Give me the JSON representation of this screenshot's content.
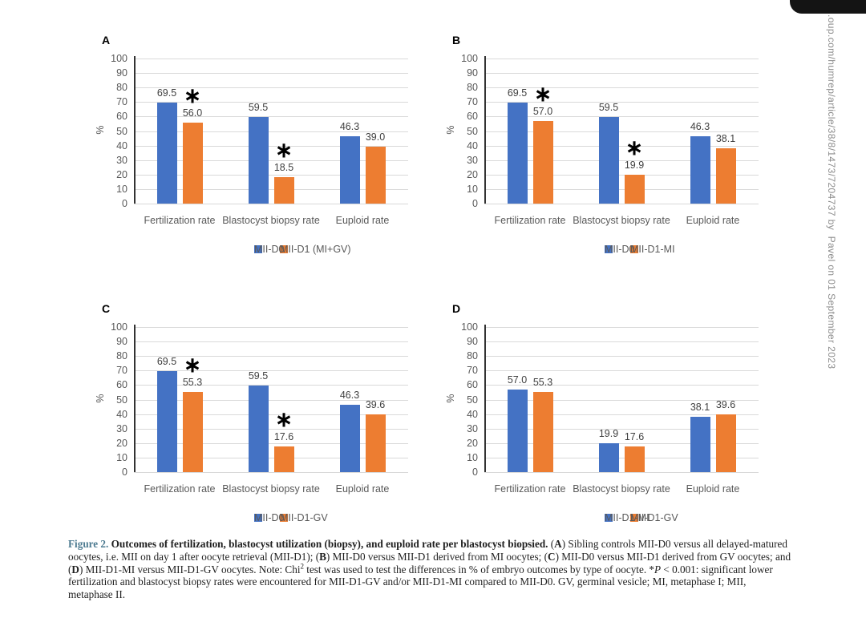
{
  "watermark": {
    "text": ".oup.com/humrep/article/38/8/1473/7204737 by  Pavel on 01 September 2023",
    "color": "#8c8c8c"
  },
  "corner_tab": {
    "color": "#141414"
  },
  "chart_style": {
    "grid_color": "#d9d9d9",
    "axis_color": "#333333",
    "tick_color": "#595959",
    "value_label_color": "#3f3f3f",
    "blue": "#4472C4",
    "orange": "#ED7D31",
    "sig_marker": "∗"
  },
  "chart_data": [
    {
      "type": "bar",
      "panel_label": "A",
      "ylabel": "%",
      "ylim": [
        0,
        100
      ],
      "yticks": [
        0,
        10,
        20,
        30,
        40,
        50,
        60,
        70,
        80,
        90,
        100
      ],
      "grid": true,
      "legend_position": "bottom",
      "categories": [
        "Fertilization rate",
        "Blastocyst biopsy rate",
        "Euploid rate"
      ],
      "series": [
        {
          "name": "MII-D0",
          "color": "#4472C4",
          "values": [
            69.5,
            59.5,
            46.3
          ],
          "labels": [
            "69.5",
            "59.5",
            "46.3"
          ],
          "sig": [
            false,
            false,
            false
          ]
        },
        {
          "name": "MII-D1 (MI+GV)",
          "color": "#ED7D31",
          "values": [
            56.0,
            18.5,
            39.0
          ],
          "labels": [
            "56.0",
            "18.5",
            "39.0"
          ],
          "sig": [
            true,
            true,
            false
          ]
        }
      ]
    },
    {
      "type": "bar",
      "panel_label": "B",
      "ylabel": "%",
      "ylim": [
        0,
        100
      ],
      "yticks": [
        0,
        10,
        20,
        30,
        40,
        50,
        60,
        70,
        80,
        90,
        100
      ],
      "grid": true,
      "legend_position": "bottom",
      "categories": [
        "Fertilization rate",
        "Blastocyst biopsy rate",
        "Euploid rate"
      ],
      "series": [
        {
          "name": "MII-D0",
          "color": "#4472C4",
          "values": [
            69.5,
            59.5,
            46.3
          ],
          "labels": [
            "69.5",
            "59.5",
            "46.3"
          ],
          "sig": [
            false,
            false,
            false
          ]
        },
        {
          "name": "MII-D1-MI",
          "color": "#ED7D31",
          "values": [
            57.0,
            19.9,
            38.1
          ],
          "labels": [
            "57.0",
            "19.9",
            "38.1"
          ],
          "sig": [
            true,
            true,
            false
          ]
        }
      ]
    },
    {
      "type": "bar",
      "panel_label": "C",
      "ylabel": "%",
      "ylim": [
        0,
        100
      ],
      "yticks": [
        0,
        10,
        20,
        30,
        40,
        50,
        60,
        70,
        80,
        90,
        100
      ],
      "grid": true,
      "legend_position": "bottom",
      "categories": [
        "Fertilization rate",
        "Blastocyst biopsy rate",
        "Euploid rate"
      ],
      "series": [
        {
          "name": "MII-D0",
          "color": "#4472C4",
          "values": [
            69.5,
            59.5,
            46.3
          ],
          "labels": [
            "69.5",
            "59.5",
            "46.3"
          ],
          "sig": [
            false,
            false,
            false
          ]
        },
        {
          "name": "MII-D1-GV",
          "color": "#ED7D31",
          "values": [
            55.3,
            17.6,
            39.6
          ],
          "labels": [
            "55.3",
            "17.6",
            "39.6"
          ],
          "sig": [
            true,
            true,
            false
          ]
        }
      ]
    },
    {
      "type": "bar",
      "panel_label": "D",
      "ylabel": "%",
      "ylim": [
        0,
        100
      ],
      "yticks": [
        0,
        10,
        20,
        30,
        40,
        50,
        60,
        70,
        80,
        90,
        100
      ],
      "grid": true,
      "legend_position": "bottom",
      "categories": [
        "Fertilization rate",
        "Blastocyst biopsy rate",
        "Euploid rate"
      ],
      "series": [
        {
          "name": "MII-D1-MI",
          "color": "#4472C4",
          "values": [
            57.0,
            19.9,
            38.1
          ],
          "labels": [
            "57.0",
            "19.9",
            "38.1"
          ],
          "sig": [
            false,
            false,
            false
          ]
        },
        {
          "name": "MII-D1-GV",
          "color": "#ED7D31",
          "values": [
            55.3,
            17.6,
            39.6
          ],
          "labels": [
            "55.3",
            "17.6",
            "39.6"
          ],
          "sig": [
            false,
            false,
            false
          ]
        }
      ]
    }
  ],
  "caption": {
    "segments": [
      {
        "t": "Figure 2. ",
        "s": "fig"
      },
      {
        "t": "Outcomes of fertilization, blastocyst utilization (biopsy), and euploid rate per blastocyst biopsied. ",
        "s": "b"
      },
      {
        "t": "(",
        "s": ""
      },
      {
        "t": "A",
        "s": "b"
      },
      {
        "t": ") Sibling controls MII-D0 versus all delayed-matured oocytes, i.e. MII on day 1 after oocyte retrieval (MII-D1); (",
        "s": ""
      },
      {
        "t": "B",
        "s": "b"
      },
      {
        "t": ") MII-D0 versus MII-D1 derived from MI oocytes; (",
        "s": ""
      },
      {
        "t": "C",
        "s": "b"
      },
      {
        "t": ") MII-D0 versus MII-D1 derived from GV oocytes; and (",
        "s": ""
      },
      {
        "t": "D",
        "s": "b"
      },
      {
        "t": ") MII-D1-MI versus MII-D1-GV oocytes. Note: Chi",
        "s": ""
      },
      {
        "t": "2",
        "s": "sup"
      },
      {
        "t": " test was used to test the differences in % of embryo outcomes by type of oocyte. *",
        "s": ""
      },
      {
        "t": "P",
        "s": "i"
      },
      {
        "t": " < 0.001: significant lower fertilization and blastocyst biopsy rates were encountered for MII-D1-GV and/or MII-D1-MI compared to MII-D0. GV, germinal vesicle; MI, metaphase I; MII, metaphase II.",
        "s": ""
      }
    ]
  }
}
